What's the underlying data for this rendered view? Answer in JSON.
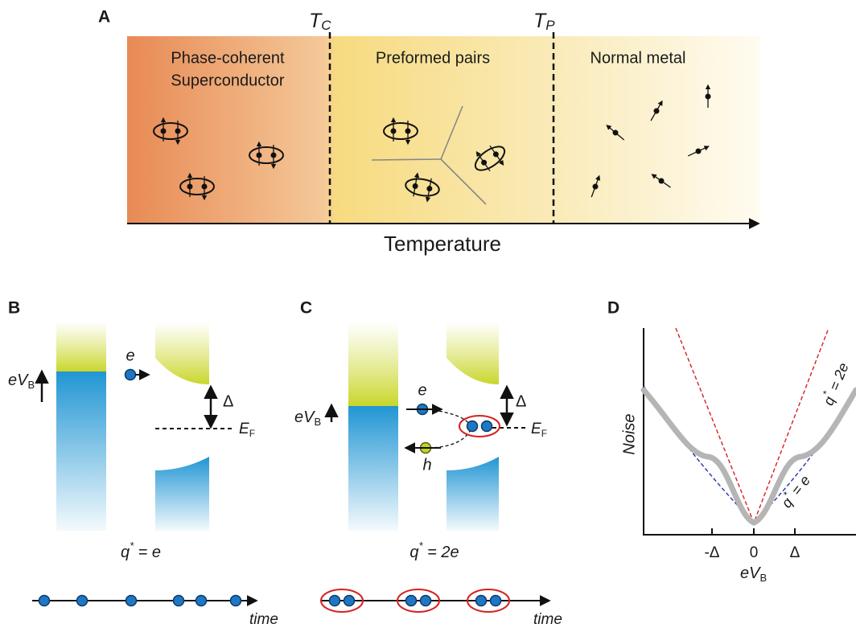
{
  "panel_a": {
    "letter": "A",
    "tc": {
      "main": "T",
      "sub": "C"
    },
    "tp": {
      "main": "T",
      "sub": "P"
    },
    "regions": [
      [
        "Phase-coherent",
        "Superconductor"
      ],
      [
        "Preformed pairs"
      ],
      [
        "Normal metal"
      ]
    ],
    "axis_label": "Temperature"
  },
  "panel_b": {
    "letter": "B",
    "electron": "e",
    "bias": {
      "main": "eV",
      "sub": "B"
    },
    "gap": "Δ",
    "fermi": {
      "main": "E",
      "sub": "F"
    },
    "charge": {
      "main": "q",
      "sup": "*",
      "rest": " = e"
    },
    "time": "time"
  },
  "panel_c": {
    "letter": "C",
    "electron": "e",
    "hole": "h",
    "bias": {
      "main": "eV",
      "sub": "B"
    },
    "gap": "Δ",
    "fermi": {
      "main": "E",
      "sub": "F"
    },
    "charge": {
      "main": "q",
      "sup": "*",
      "rest": " = 2e"
    },
    "time": "time"
  },
  "panel_d": {
    "letter": "D",
    "y_label": "Noise",
    "x_ticks": [
      "-Δ",
      "0",
      "Δ"
    ],
    "x_label": {
      "main": "eV",
      "sub": "B"
    },
    "curve_2e": {
      "main": "q",
      "sup": "*",
      "rest": " = 2e"
    },
    "curve_e": {
      "main": "q",
      "sup": "*",
      "rest": " = e"
    }
  }
}
